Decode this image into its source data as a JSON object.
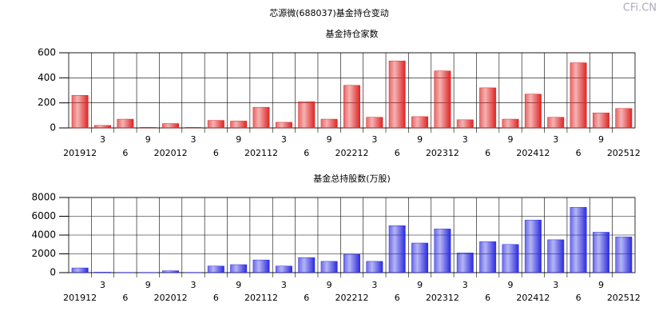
{
  "title": "芯源微(688037)基金持仓变动",
  "watermark": "CFi.CN",
  "chart_data": [
    {
      "type": "bar",
      "title": "基金持仓家数",
      "categories": [
        "201912",
        "3",
        "6",
        "9",
        "202012",
        "3",
        "6",
        "9",
        "202112",
        "3",
        "6",
        "9",
        "202212",
        "3",
        "6",
        "9",
        "202312",
        "3",
        "6",
        "9",
        "202412",
        "3",
        "6",
        "9",
        "202512"
      ],
      "values": [
        260,
        20,
        70,
        5,
        35,
        5,
        60,
        55,
        165,
        45,
        210,
        70,
        340,
        85,
        535,
        90,
        455,
        65,
        320,
        70,
        270,
        85,
        520,
        120,
        155
      ],
      "color": "#e02424",
      "ylim": [
        0,
        600
      ],
      "yticks": [
        0,
        200,
        400,
        600
      ],
      "grid": true
    },
    {
      "type": "bar",
      "title": "基金总持股数(万股)",
      "categories": [
        "201912",
        "3",
        "6",
        "9",
        "202012",
        "3",
        "6",
        "9",
        "202112",
        "3",
        "6",
        "9",
        "202212",
        "3",
        "6",
        "9",
        "202312",
        "3",
        "6",
        "9",
        "202412",
        "3",
        "6",
        "9",
        "202512"
      ],
      "values": [
        500,
        50,
        30,
        30,
        200,
        30,
        700,
        850,
        1350,
        700,
        1600,
        1200,
        1950,
        1200,
        5000,
        3150,
        4650,
        2100,
        3300,
        3000,
        5600,
        3500,
        6950,
        4300,
        3800
      ],
      "color": "#2b2be0",
      "ylim": [
        0,
        8000
      ],
      "yticks": [
        0,
        2000,
        4000,
        6000,
        8000
      ],
      "grid": true
    }
  ]
}
